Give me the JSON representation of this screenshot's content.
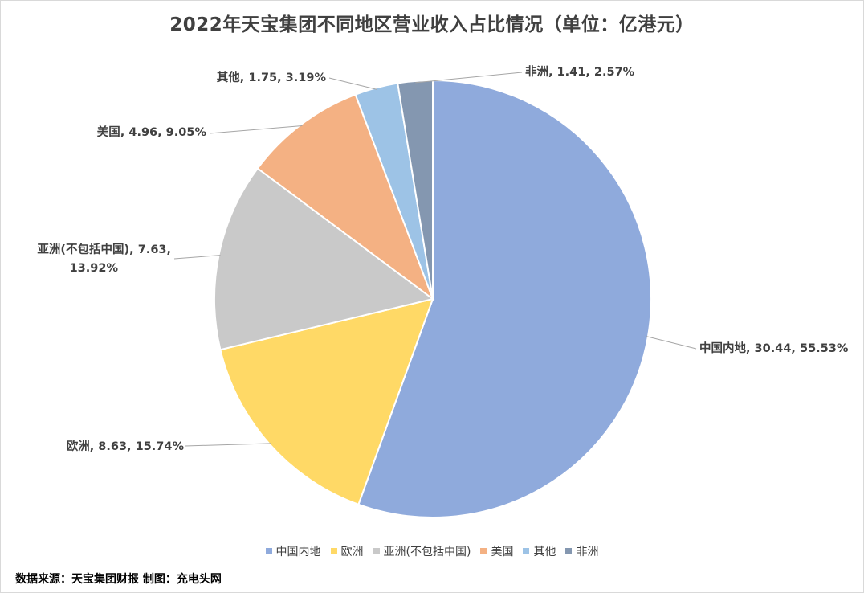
{
  "chart_data": {
    "type": "pie",
    "title": "2022年天宝集团不同地区营业收入占比情况（单位：亿港元）",
    "slices": [
      {
        "name": "中国内地",
        "value": 30.44,
        "percent": "55.53%",
        "label": "中国内地, 30.44, 55.53%",
        "color": "#8faadc"
      },
      {
        "name": "欧洲",
        "value": 8.63,
        "percent": "15.74%",
        "label": "欧洲, 8.63, 15.74%",
        "color": "#ffd966"
      },
      {
        "name": "亚洲(不包括中国)",
        "value": 7.63,
        "percent": "13.92%",
        "label": "亚洲(不包括中国), 7.63,",
        "label2": "13.92%",
        "color": "#c9c9c9"
      },
      {
        "name": "美国",
        "value": 4.96,
        "percent": "9.05%",
        "label": "美国, 4.96, 9.05%",
        "color": "#f4b183"
      },
      {
        "name": "其他",
        "value": 1.75,
        "percent": "3.19%",
        "label": "其他, 1.75, 3.19%",
        "color": "#9dc3e6"
      },
      {
        "name": "非洲",
        "value": 1.41,
        "percent": "2.57%",
        "label": "非洲, 1.41, 2.57%",
        "color": "#8497b0"
      }
    ],
    "legend_position": "bottom",
    "start_angle": "12 o'clock, clockwise"
  },
  "source_note": "数据来源：天宝集团财报  制图：充电头网"
}
